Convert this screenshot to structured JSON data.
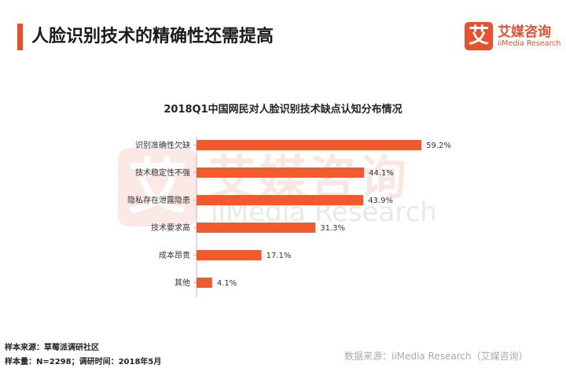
{
  "header": {
    "title": "人脸识别技术的精确性还需提高",
    "accent_color": "#e8502e"
  },
  "logo": {
    "mark_char": "艾",
    "name_cn": "艾媒咨询",
    "name_en": "iiMedia Research",
    "color": "#e8502e"
  },
  "watermark": {
    "mark_char": "艾",
    "text_cn": "艾媒咨询",
    "text_en": "iiMedia Research"
  },
  "chart_data": {
    "type": "bar",
    "orientation": "horizontal",
    "title": "2018Q1中国网民对人脸识别技术缺点认知分布情况",
    "categories": [
      "识别准确性欠缺",
      "技术稳定性不强",
      "隐私存在泄露隐患",
      "技术要求高",
      "成本昂贵",
      "其他"
    ],
    "values": [
      59.2,
      44.1,
      43.9,
      31.3,
      17.1,
      4.1
    ],
    "value_labels": [
      "59.2%",
      "44.1%",
      "43.9%",
      "31.3%",
      "17.1%",
      "4.1%"
    ],
    "xlim": [
      0,
      60
    ],
    "bar_color": "#f15a2c",
    "grid": false,
    "legend": "none"
  },
  "footer": {
    "sample_source": "样本来源：草莓派调研社区",
    "sample_size": "样本量：N=2298；调研时间：2018年5月",
    "data_source": "数据来源：iiMedia Research（艾媒咨询）"
  }
}
